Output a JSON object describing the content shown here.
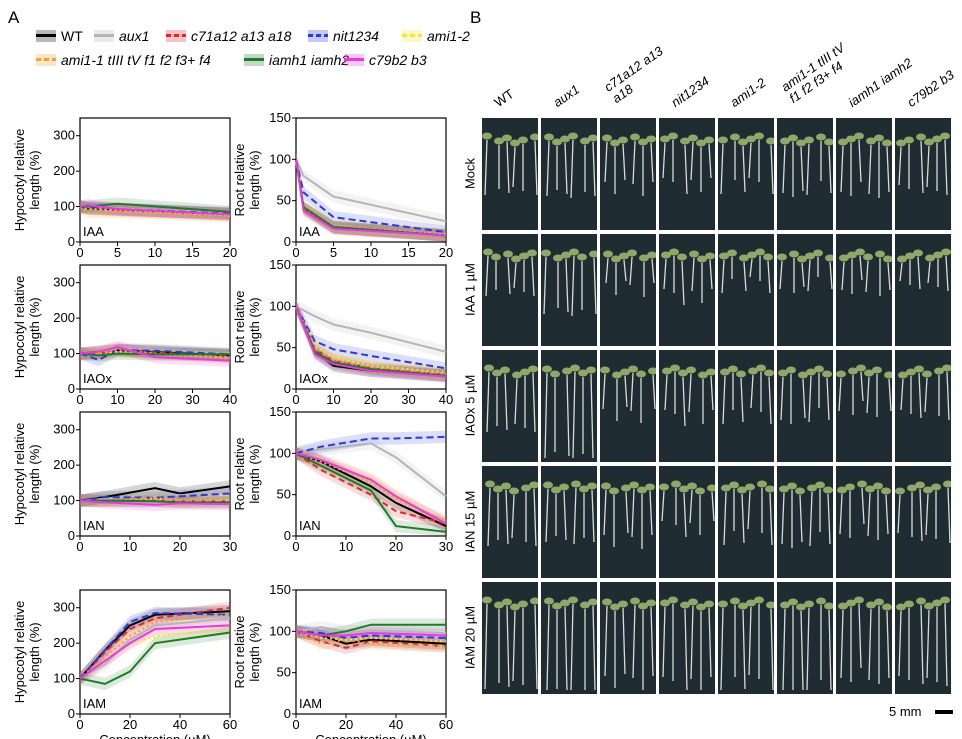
{
  "panels": {
    "a": "A",
    "b": "B"
  },
  "legend": [
    {
      "label": "WT",
      "color": "#000000",
      "dash": "",
      "italic": false
    },
    {
      "label": "aux1",
      "color": "#b5b5b5",
      "dash": "",
      "italic": true
    },
    {
      "label": "c71a12 a13 a18",
      "color": "#e3262c",
      "dash": "6,4",
      "italic": true
    },
    {
      "label": "nit1234",
      "color": "#2b3bd9",
      "dash": "7,4",
      "italic": true
    },
    {
      "label": "ami1-2",
      "color": "#f0e442",
      "dash": "2,3",
      "italic": true
    },
    {
      "label": "ami1-1 tIII tV f1 f2 f3+ f4",
      "color": "#f0a03c",
      "dash": "2,3",
      "italic": true
    },
    {
      "label": "iamh1 iamh2",
      "color": "#1f7a2a",
      "dash": "",
      "italic": true
    },
    {
      "label": "c79b2 b3",
      "color": "#e838e0",
      "dash": "",
      "italic": true
    }
  ],
  "chart_data": [
    {
      "type": "line",
      "treatment": "IAA",
      "ylabel": "Hypocotyl relative length (%)",
      "xlabel": "",
      "xlim": [
        0,
        20
      ],
      "ylim": [
        0,
        350
      ],
      "xticks": [
        0,
        5,
        10,
        15,
        20
      ],
      "yticks": [
        0,
        100,
        200,
        300
      ],
      "x": [
        0,
        1,
        5,
        20
      ],
      "series": [
        {
          "name": "WT",
          "values": [
            100,
            95,
            92,
            80
          ]
        },
        {
          "name": "aux1",
          "values": [
            100,
            98,
            95,
            82
          ]
        },
        {
          "name": "c71a12 a13 a18",
          "values": [
            100,
            95,
            90,
            78
          ]
        },
        {
          "name": "nit1234",
          "values": [
            100,
            97,
            93,
            80
          ]
        },
        {
          "name": "ami1-2",
          "values": [
            100,
            93,
            90,
            76
          ]
        },
        {
          "name": "ami1-1 tIII tV f1 f2 f3+ f4",
          "values": [
            100,
            85,
            85,
            72
          ]
        },
        {
          "name": "iamh1 iamh2",
          "values": [
            100,
            100,
            108,
            85
          ]
        },
        {
          "name": "c79b2 b3",
          "values": [
            100,
            104,
            93,
            78
          ]
        }
      ]
    },
    {
      "type": "line",
      "treatment": "IAA",
      "ylabel": "Root relative length (%)",
      "xlabel": "",
      "xlim": [
        0,
        20
      ],
      "ylim": [
        0,
        150
      ],
      "xticks": [
        0,
        5,
        10,
        15,
        20
      ],
      "yticks": [
        0,
        50,
        100,
        150
      ],
      "x": [
        0,
        1,
        5,
        20
      ],
      "series": [
        {
          "name": "WT",
          "values": [
            100,
            42,
            18,
            8
          ]
        },
        {
          "name": "aux1",
          "values": [
            100,
            80,
            55,
            25
          ]
        },
        {
          "name": "c71a12 a13 a18",
          "values": [
            100,
            40,
            17,
            8
          ]
        },
        {
          "name": "nit1234",
          "values": [
            100,
            60,
            30,
            12
          ]
        },
        {
          "name": "ami1-2",
          "values": [
            100,
            42,
            18,
            9
          ]
        },
        {
          "name": "ami1-1 tIII tV f1 f2 f3+ f4",
          "values": [
            100,
            41,
            18,
            8
          ]
        },
        {
          "name": "iamh1 iamh2",
          "values": [
            100,
            42,
            18,
            8
          ]
        },
        {
          "name": "c79b2 b3",
          "values": [
            100,
            38,
            16,
            8
          ]
        }
      ]
    },
    {
      "type": "line",
      "treatment": "IAOx",
      "ylabel": "Hypocotyl relative length (%)",
      "xlabel": "",
      "xlim": [
        0,
        40
      ],
      "ylim": [
        0,
        350
      ],
      "xticks": [
        0,
        10,
        20,
        30,
        40
      ],
      "yticks": [
        0,
        100,
        200,
        300
      ],
      "x": [
        0,
        5,
        10,
        20,
        40
      ],
      "series": [
        {
          "name": "WT",
          "values": [
            100,
            105,
            110,
            105,
            95
          ]
        },
        {
          "name": "aux1",
          "values": [
            100,
            102,
            115,
            110,
            100
          ]
        },
        {
          "name": "c71a12 a13 a18",
          "values": [
            100,
            100,
            108,
            103,
            92
          ]
        },
        {
          "name": "nit1234",
          "values": [
            100,
            82,
            110,
            108,
            98
          ]
        },
        {
          "name": "ami1-2",
          "values": [
            100,
            98,
            105,
            100,
            88
          ]
        },
        {
          "name": "ami1-1 tIII tV f1 f2 f3+ f4",
          "values": [
            100,
            100,
            112,
            100,
            90
          ]
        },
        {
          "name": "iamh1 iamh2",
          "values": [
            100,
            95,
            100,
            98,
            98
          ]
        },
        {
          "name": "c79b2 b3",
          "values": [
            100,
            105,
            118,
            90,
            80
          ]
        }
      ]
    },
    {
      "type": "line",
      "treatment": "IAOx",
      "ylabel": "Root relative length (%)",
      "xlabel": "",
      "xlim": [
        0,
        40
      ],
      "ylim": [
        0,
        150
      ],
      "xticks": [
        0,
        10,
        20,
        30,
        40
      ],
      "yticks": [
        0,
        50,
        100,
        150
      ],
      "x": [
        0,
        5,
        10,
        20,
        40
      ],
      "series": [
        {
          "name": "WT",
          "values": [
            100,
            45,
            28,
            22,
            16
          ]
        },
        {
          "name": "aux1",
          "values": [
            100,
            88,
            78,
            68,
            45
          ]
        },
        {
          "name": "c71a12 a13 a18",
          "values": [
            100,
            48,
            34,
            25,
            17
          ]
        },
        {
          "name": "nit1234",
          "values": [
            100,
            58,
            48,
            40,
            25
          ]
        },
        {
          "name": "ami1-2",
          "values": [
            100,
            52,
            38,
            28,
            20
          ]
        },
        {
          "name": "ami1-1 tIII tV f1 f2 f3+ f4",
          "values": [
            100,
            50,
            35,
            26,
            18
          ]
        },
        {
          "name": "iamh1 iamh2",
          "values": [
            100,
            45,
            32,
            24,
            16
          ]
        },
        {
          "name": "c79b2 b3",
          "values": [
            100,
            42,
            30,
            22,
            15
          ]
        }
      ]
    },
    {
      "type": "line",
      "treatment": "IAN",
      "ylabel": "Hypocotyl relative length (%)",
      "xlabel": "",
      "xlim": [
        0,
        30
      ],
      "ylim": [
        0,
        350
      ],
      "xticks": [
        0,
        10,
        20,
        30
      ],
      "yticks": [
        0,
        100,
        200,
        300
      ],
      "x": [
        0,
        5,
        15,
        20,
        30
      ],
      "series": [
        {
          "name": "WT",
          "values": [
            100,
            110,
            135,
            120,
            140
          ]
        },
        {
          "name": "aux1",
          "values": [
            100,
            105,
            120,
            115,
            125
          ]
        },
        {
          "name": "c71a12 a13 a18",
          "values": [
            100,
            100,
            100,
            98,
            98
          ]
        },
        {
          "name": "nit1234",
          "values": [
            100,
            110,
            108,
            112,
            120
          ]
        },
        {
          "name": "ami1-2",
          "values": [
            100,
            100,
            105,
            100,
            102
          ]
        },
        {
          "name": "ami1-1 tIII tV f1 f2 f3+ f4",
          "values": [
            100,
            100,
            108,
            100,
            105
          ]
        },
        {
          "name": "iamh1 iamh2",
          "values": [
            100,
            100,
            98,
            95,
            95
          ]
        },
        {
          "name": "c79b2 b3",
          "values": [
            100,
            95,
            88,
            92,
            90
          ]
        }
      ]
    },
    {
      "type": "line",
      "treatment": "IAN",
      "ylabel": "Root relative length (%)",
      "xlabel": "",
      "xlim": [
        0,
        30
      ],
      "ylim": [
        0,
        150
      ],
      "xticks": [
        0,
        10,
        20,
        30
      ],
      "yticks": [
        0,
        50,
        100,
        150
      ],
      "x": [
        0,
        5,
        15,
        20,
        30
      ],
      "series": [
        {
          "name": "WT",
          "values": [
            100,
            90,
            60,
            40,
            12
          ]
        },
        {
          "name": "aux1",
          "values": [
            100,
            105,
            112,
            95,
            48
          ]
        },
        {
          "name": "c71a12 a13 a18",
          "values": [
            100,
            80,
            50,
            30,
            15
          ]
        },
        {
          "name": "nit1234",
          "values": [
            100,
            108,
            118,
            118,
            120
          ]
        },
        {
          "name": "ami1-2",
          "values": [
            100,
            90,
            70,
            50,
            15
          ]
        },
        {
          "name": "ami1-1 tIII tV f1 f2 f3+ f4",
          "values": [
            100,
            90,
            65,
            45,
            18
          ]
        },
        {
          "name": "iamh1 iamh2",
          "values": [
            100,
            85,
            55,
            12,
            5
          ]
        },
        {
          "name": "c79b2 b3",
          "values": [
            100,
            92,
            68,
            48,
            15
          ]
        }
      ]
    },
    {
      "type": "line",
      "treatment": "IAM",
      "ylabel": "Hypocotyl relative length (%)",
      "xlabel": "Concentration (µM)",
      "xlim": [
        0,
        60
      ],
      "ylim": [
        0,
        350
      ],
      "xticks": [
        0,
        20,
        40,
        60
      ],
      "yticks": [
        0,
        100,
        200,
        300
      ],
      "x": [
        0,
        10,
        20,
        30,
        60
      ],
      "series": [
        {
          "name": "WT",
          "values": [
            100,
            180,
            250,
            280,
            290
          ]
        },
        {
          "name": "aux1",
          "values": [
            100,
            140,
            210,
            250,
            270
          ]
        },
        {
          "name": "c71a12 a13 a18",
          "values": [
            100,
            175,
            240,
            270,
            300
          ]
        },
        {
          "name": "nit1234",
          "values": [
            100,
            180,
            260,
            285,
            280
          ]
        },
        {
          "name": "ami1-2",
          "values": [
            100,
            150,
            200,
            220,
            240
          ]
        },
        {
          "name": "ami1-1 tIII tV f1 f2 f3+ f4",
          "values": [
            100,
            160,
            220,
            260,
            280
          ]
        },
        {
          "name": "iamh1 iamh2",
          "values": [
            100,
            85,
            120,
            200,
            230
          ]
        },
        {
          "name": "c79b2 b3",
          "values": [
            100,
            150,
            200,
            240,
            250
          ]
        }
      ]
    },
    {
      "type": "line",
      "treatment": "IAM",
      "ylabel": "Root relative length (%)",
      "xlabel": "Concentration (µM)",
      "xlim": [
        0,
        60
      ],
      "ylim": [
        0,
        150
      ],
      "xticks": [
        0,
        20,
        40,
        60
      ],
      "yticks": [
        0,
        50,
        100,
        150
      ],
      "x": [
        0,
        10,
        20,
        30,
        60
      ],
      "series": [
        {
          "name": "WT",
          "values": [
            100,
            95,
            85,
            90,
            85
          ]
        },
        {
          "name": "aux1",
          "values": [
            100,
            105,
            100,
            100,
            98
          ]
        },
        {
          "name": "c71a12 a13 a18",
          "values": [
            100,
            88,
            80,
            88,
            82
          ]
        },
        {
          "name": "nit1234",
          "values": [
            100,
            98,
            92,
            95,
            92
          ]
        },
        {
          "name": "ami1-2",
          "values": [
            100,
            92,
            90,
            92,
            88
          ]
        },
        {
          "name": "ami1-1 tIII tV f1 f2 f3+ f4",
          "values": [
            100,
            85,
            90,
            85,
            82
          ]
        },
        {
          "name": "iamh1 iamh2",
          "values": [
            100,
            95,
            100,
            108,
            108
          ]
        },
        {
          "name": "c79b2 b3",
          "values": [
            100,
            95,
            95,
            98,
            95
          ]
        }
      ]
    }
  ],
  "photo_grid": {
    "columns": [
      "WT",
      "aux1",
      "c71a12 a13 a18",
      "nit1234",
      "ami1-2",
      "ami1-1 tIII tV f1 f2 f3+ f4",
      "iamh1 iamh2",
      "c79b2 b3"
    ],
    "columns_italic": [
      false,
      true,
      true,
      true,
      true,
      true,
      true,
      true
    ],
    "rows": [
      "Mock",
      "IAA 1 µM",
      "IAOx 5 µM",
      "IAN 15 µM",
      "IAM 20 µM"
    ],
    "scale_label": "5 mm"
  }
}
